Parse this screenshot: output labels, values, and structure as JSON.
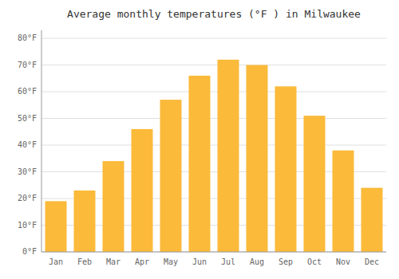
{
  "chart_data": {
    "type": "bar",
    "title": "Average monthly temperatures (°F ) in Milwaukee",
    "categories": [
      "Jan",
      "Feb",
      "Mar",
      "Apr",
      "May",
      "Jun",
      "Jul",
      "Aug",
      "Sep",
      "Oct",
      "Nov",
      "Dec"
    ],
    "values": [
      19,
      23,
      34,
      46,
      57,
      66,
      72,
      70,
      62,
      51,
      38,
      24
    ],
    "color": "#FBBA3A",
    "ylim": [
      0,
      83
    ],
    "yticks": [
      {
        "value": 0,
        "label": "0°F"
      },
      {
        "value": 10,
        "label": "10°F"
      },
      {
        "value": 20,
        "label": "20°F"
      },
      {
        "value": 30,
        "label": "30°F"
      },
      {
        "value": 40,
        "label": "40°F"
      },
      {
        "value": 50,
        "label": "50°F"
      },
      {
        "value": 60,
        "label": "60°F"
      },
      {
        "value": 70,
        "label": "70°F"
      },
      {
        "value": 80,
        "label": "80°F"
      }
    ],
    "grid": true
  }
}
